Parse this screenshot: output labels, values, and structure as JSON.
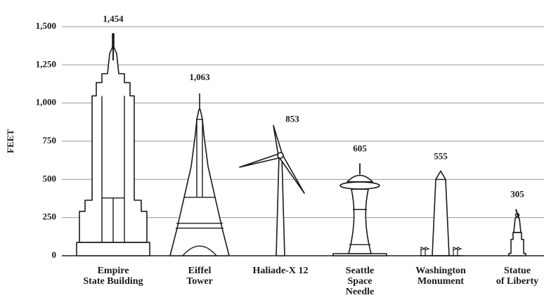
{
  "chart_data": {
    "type": "pictograph",
    "y_label": "FEET",
    "categories": [
      "Empire\nState Building",
      "Eiffel\nTower",
      "Haliade-X 12",
      "Seattle\nSpace\nNeedle",
      "Washington\nMonument",
      "Statue\nof Liberty"
    ],
    "values": [
      1454,
      1063,
      853,
      605,
      555,
      305
    ],
    "value_labels": [
      "1,454",
      "1,063",
      "853",
      "605",
      "555",
      "305"
    ],
    "ylim": [
      0,
      1500
    ],
    "yticks": [
      0,
      250,
      500,
      750,
      {
        "value": 1000,
        "label": "1,000"
      },
      {
        "value": 1250,
        "label": "1,250"
      },
      {
        "value": 1500,
        "label": "1,500"
      }
    ],
    "grid": true,
    "color": "#1a1a1a"
  }
}
